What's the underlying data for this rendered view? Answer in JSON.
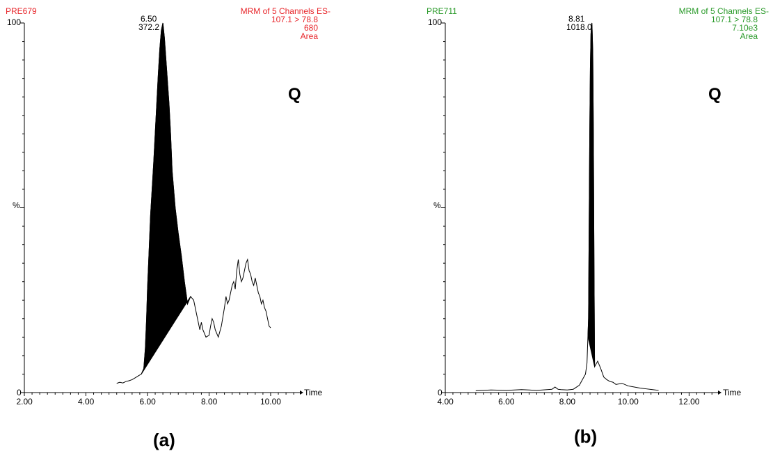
{
  "chart_data": [
    {
      "type": "area",
      "panel_label": "(a)",
      "sample_id": "PRE679",
      "header_lines": [
        "MRM of 5 Channels ES-",
        "107.1 > 78.8",
        "680",
        "Area"
      ],
      "marker": "Q",
      "peak_time_label": "6.50",
      "peak_area_label": "372.2",
      "ylabel": "%",
      "xlabel": "Time",
      "y_ticks": [
        "0",
        "100"
      ],
      "x_ticks": [
        "2.00",
        "4.00",
        "6.00",
        "8.00",
        "10.00"
      ],
      "xlim": [
        2.0,
        10.95
      ],
      "ylim": [
        0,
        100
      ],
      "color": "#e8262b",
      "trace": {
        "x": [
          5.0,
          5.1,
          5.2,
          5.3,
          5.4,
          5.5,
          5.6,
          5.7,
          5.8,
          5.88,
          5.93,
          5.97,
          6.0,
          6.05,
          6.1,
          6.15,
          6.2,
          6.25,
          6.3,
          6.35,
          6.4,
          6.45,
          6.5,
          6.55,
          6.6,
          6.65,
          6.7,
          6.75,
          6.8,
          6.85,
          6.9,
          7.0,
          7.1,
          7.2,
          7.3,
          7.35,
          7.4,
          7.5,
          7.6,
          7.7,
          7.75,
          7.8,
          7.85,
          7.9,
          8.0,
          8.05,
          8.1,
          8.15,
          8.2,
          8.3,
          8.4,
          8.5,
          8.55,
          8.6,
          8.65,
          8.7,
          8.75,
          8.8,
          8.85,
          8.9,
          8.95,
          9.0,
          9.05,
          9.1,
          9.15,
          9.2,
          9.25,
          9.3,
          9.35,
          9.4,
          9.45,
          9.5,
          9.55,
          9.6,
          9.65,
          9.7,
          9.75,
          9.8,
          9.85,
          9.9,
          9.95,
          10.0
        ],
        "y": [
          2.5,
          2.8,
          2.6,
          3.0,
          3.2,
          3.5,
          4.0,
          4.5,
          5.0,
          6.5,
          12,
          20,
          28,
          38,
          48,
          55,
          62,
          70,
          78,
          86,
          93,
          98,
          100,
          96,
          90,
          84,
          78,
          70,
          60,
          55,
          50,
          43,
          37,
          30,
          24,
          25,
          26,
          25,
          21,
          17,
          19,
          17,
          16,
          15,
          15.5,
          18,
          20,
          19,
          17,
          15,
          18,
          23,
          26,
          24,
          25,
          27,
          29,
          30,
          28,
          33,
          36,
          32,
          30,
          31,
          33,
          35,
          36,
          33,
          32,
          30,
          29,
          31,
          29,
          27,
          26,
          24,
          25,
          23,
          22,
          20,
          18,
          17.5
        ]
      },
      "integrated_peak": {
        "start": 5.8,
        "end": 7.4
      }
    },
    {
      "type": "area",
      "panel_label": "(b)",
      "sample_id": "PRE711",
      "header_lines": [
        "MRM of 5 Channels ES-",
        "107.1 > 78.8",
        "7.10e3",
        "Area"
      ],
      "marker": "Q",
      "peak_time_label": "8.81",
      "peak_area_label": "1018.0",
      "ylabel": "%",
      "xlabel": "Time",
      "y_ticks": [
        "0",
        "100"
      ],
      "x_ticks": [
        "4.00",
        "6.00",
        "8.00",
        "10.00",
        "12.00"
      ],
      "xlim": [
        4.0,
        12.95
      ],
      "ylim": [
        0,
        100
      ],
      "color": "#2a9a2a",
      "trace": {
        "x": [
          5.0,
          5.5,
          6.0,
          6.5,
          7.0,
          7.5,
          7.6,
          7.7,
          7.8,
          8.0,
          8.2,
          8.4,
          8.5,
          8.6,
          8.65,
          8.7,
          8.72,
          8.74,
          8.76,
          8.78,
          8.8,
          8.81,
          8.82,
          8.84,
          8.86,
          8.88,
          8.9,
          9.0,
          9.1,
          9.2,
          9.3,
          9.4,
          9.5,
          9.6,
          9.8,
          10.0,
          10.2,
          10.4,
          10.6,
          10.8,
          11.0
        ],
        "y": [
          0.5,
          0.7,
          0.6,
          0.8,
          0.6,
          0.9,
          1.5,
          0.9,
          0.8,
          0.7,
          0.9,
          2.0,
          3.5,
          5.0,
          8.0,
          20,
          45,
          70,
          88,
          97,
          99.5,
          100,
          98,
          92,
          70,
          35,
          7.0,
          8.5,
          6.5,
          4.2,
          3.5,
          3.0,
          2.8,
          2.2,
          2.5,
          1.8,
          1.5,
          1.2,
          1.0,
          0.8,
          0.6
        ]
      },
      "integrated_peak": {
        "start": 8.68,
        "end": 8.9
      }
    }
  ]
}
